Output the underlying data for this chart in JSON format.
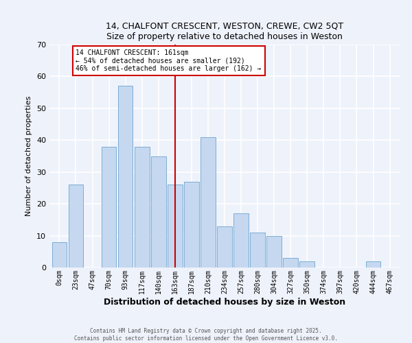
{
  "title": "14, CHALFONT CRESCENT, WESTON, CREWE, CW2 5QT",
  "subtitle": "Size of property relative to detached houses in Weston",
  "xlabel": "Distribution of detached houses by size in Weston",
  "ylabel": "Number of detached properties",
  "bar_labels": [
    "0sqm",
    "23sqm",
    "47sqm",
    "70sqm",
    "93sqm",
    "117sqm",
    "140sqm",
    "163sqm",
    "187sqm",
    "210sqm",
    "234sqm",
    "257sqm",
    "280sqm",
    "304sqm",
    "327sqm",
    "350sqm",
    "374sqm",
    "397sqm",
    "420sqm",
    "444sqm",
    "467sqm"
  ],
  "bar_heights": [
    8,
    26,
    0,
    38,
    57,
    38,
    35,
    26,
    27,
    41,
    13,
    17,
    11,
    10,
    3,
    2,
    0,
    0,
    0,
    2,
    0
  ],
  "bar_color": "#c5d8f0",
  "bar_edge_color": "#7badd4",
  "vline_x_index": 7,
  "vline_color": "#cc0000",
  "annotation_title": "14 CHALFONT CRESCENT: 161sqm",
  "annotation_line1": "← 54% of detached houses are smaller (192)",
  "annotation_line2": "46% of semi-detached houses are larger (162) →",
  "annotation_box_color": "#ffffff",
  "annotation_border_color": "#cc0000",
  "ylim": [
    0,
    70
  ],
  "yticks": [
    0,
    10,
    20,
    30,
    40,
    50,
    60,
    70
  ],
  "background_color": "#eef2fb",
  "grid_color": "#ffffff",
  "footer1": "Contains HM Land Registry data © Crown copyright and database right 2025.",
  "footer2": "Contains public sector information licensed under the Open Government Licence v3.0."
}
